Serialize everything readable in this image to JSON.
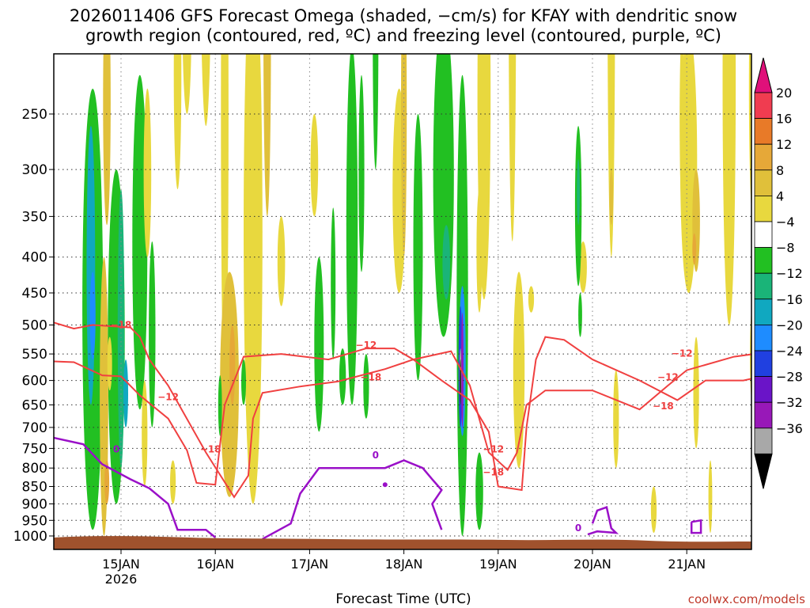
{
  "chart_data": {
    "type": "heatmap",
    "title": [
      "2026011406 GFS Forecast Omega (shaded, −cm/s) for KFAY with dendritic snow",
      "growth region (contoured, red, ºC) and freezing level (contoured, purple, ºC)"
    ],
    "xlabel": "Forecast Time (UTC)",
    "credit": "coolwx.com/models",
    "y_levels": [
      "250",
      "300",
      "350",
      "400",
      "450",
      "500",
      "550",
      "600",
      "650",
      "700",
      "750",
      "800",
      "850",
      "900",
      "950",
      "1000"
    ],
    "x_ticks": [
      {
        "label": "15JAN",
        "sub": "2026"
      },
      {
        "label": "16JAN",
        "sub": ""
      },
      {
        "label": "17JAN",
        "sub": ""
      },
      {
        "label": "18JAN",
        "sub": ""
      },
      {
        "label": "19JAN",
        "sub": ""
      },
      {
        "label": "20JAN",
        "sub": ""
      },
      {
        "label": "21JAN",
        "sub": ""
      }
    ],
    "colorbar": {
      "labels": [
        "20",
        "16",
        "12",
        "8",
        "4",
        "−4",
        "−8",
        "−12",
        "−16",
        "−20",
        "−24",
        "−28",
        "−32",
        "−36"
      ],
      "colors": [
        "#f03c50",
        "#e87a28",
        "#e6a838",
        "#e0c03a",
        "#e8d83e",
        "#ffffff",
        "#22c022",
        "#1ab478",
        "#10a8c0",
        "#1e8cff",
        "#2040e0",
        "#6a14c8",
        "#9818b8",
        "#a8a8a8",
        "#000000"
      ],
      "top_arrow_color": "#e0107a"
    },
    "contour_labels": {
      "red": [
        "−18",
        "−12",
        "−18",
        "−12",
        "−18",
        "−12",
        "−18",
        "−12",
        "−18",
        "−12"
      ],
      "purple": [
        "0",
        "0",
        "0"
      ]
    },
    "contour_colors": {
      "dendritic": "#f04040",
      "freezing": "#9a10c8",
      "terrain": "#a0522d"
    }
  }
}
